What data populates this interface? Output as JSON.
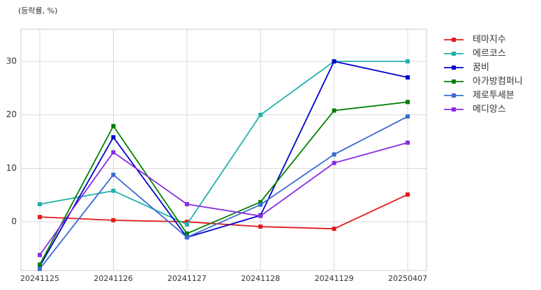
{
  "chart_data": {
    "type": "line",
    "ylabel": "(등락률, %)",
    "categories": [
      "20241125",
      "20241126",
      "20241127",
      "20241128",
      "20241129",
      "20250407"
    ],
    "series": [
      {
        "name": "테마지수",
        "color": "#e31a1c",
        "values": [
          0.9,
          0.3,
          0.0,
          -0.9,
          -1.3,
          5.1
        ]
      },
      {
        "name": "에르코스",
        "color": "#20b2aa",
        "values": [
          3.3,
          5.8,
          -0.5,
          20.0,
          30.0,
          30.0
        ]
      },
      {
        "name": "꿈비",
        "color": "#0000cd",
        "values": [
          -8.3,
          15.8,
          -2.9,
          1.2,
          30.0,
          27.0
        ]
      },
      {
        "name": "아가방컴퍼니",
        "color": "#008000",
        "values": [
          -8.0,
          17.9,
          -2.2,
          3.7,
          20.8,
          22.4
        ]
      },
      {
        "name": "제로투세븐",
        "color": "#3a6bd0",
        "values": [
          -8.8,
          8.8,
          -2.9,
          3.2,
          12.6,
          19.7
        ]
      },
      {
        "name": "메디앙스",
        "color": "#8a2be2",
        "values": [
          -6.2,
          13.0,
          3.3,
          1.1,
          11.0,
          14.8
        ]
      }
    ],
    "ylim": [
      -9.1,
      36
    ],
    "yticks": [
      0,
      10,
      20,
      30
    ],
    "grid": true,
    "legend": "outside-right"
  }
}
